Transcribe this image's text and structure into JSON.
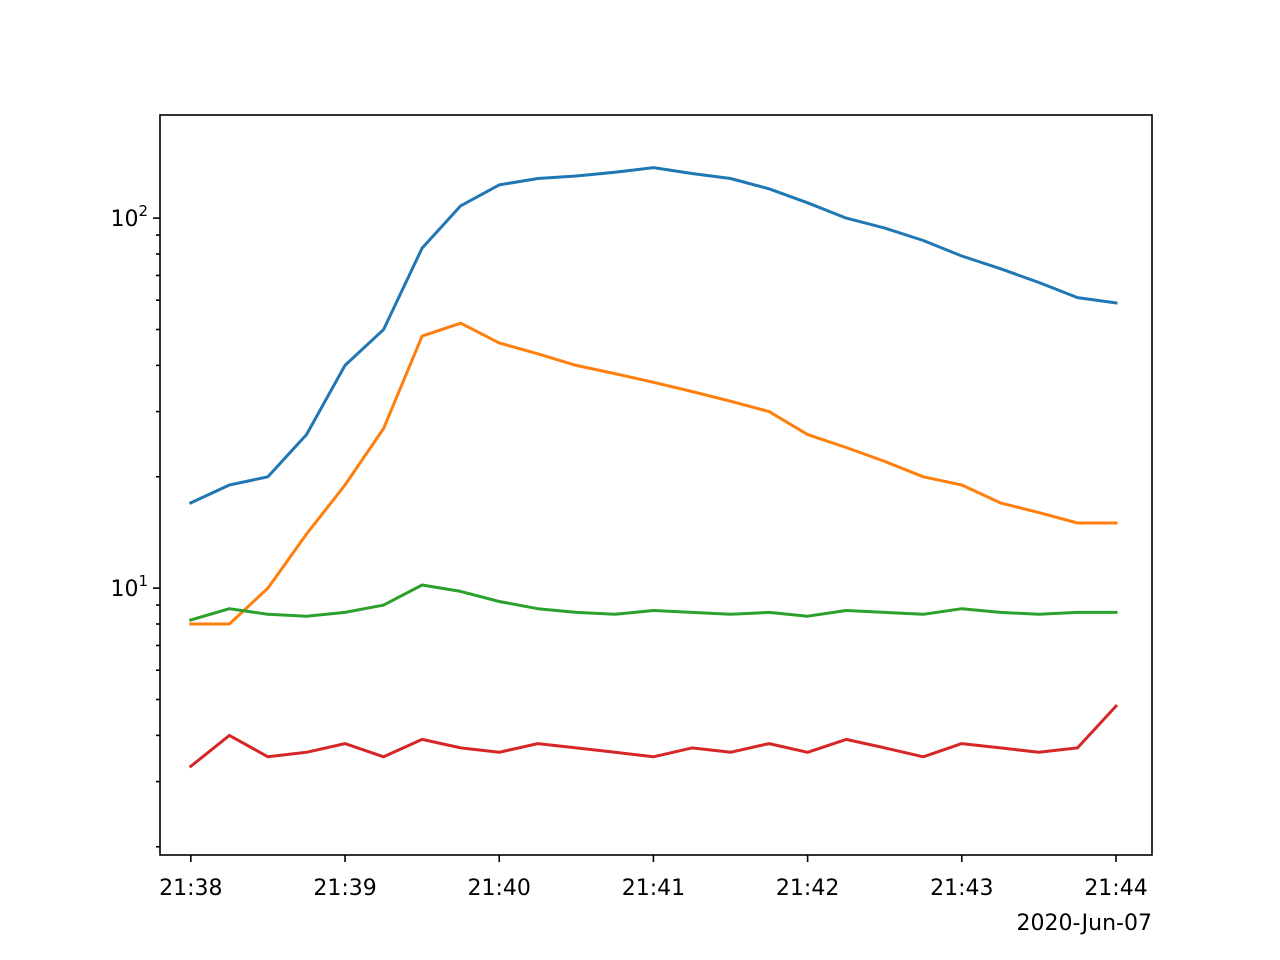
{
  "chart_data": {
    "type": "line",
    "title": "",
    "xlabel": "",
    "ylabel": "",
    "yscale": "log",
    "ylim": [
      1.9,
      190
    ],
    "xlim": [
      "21:37:48",
      "21:44:14"
    ],
    "x_ticks": [
      "21:38",
      "21:39",
      "21:40",
      "21:41",
      "21:42",
      "21:43",
      "21:44"
    ],
    "y_ticks": [
      {
        "value": 10,
        "base": "10",
        "exp": "1"
      },
      {
        "value": 100,
        "base": "10",
        "exp": "2"
      }
    ],
    "date_label": "2020-Jun-07",
    "grid": false,
    "legend": "none",
    "series": [
      {
        "color": "#1f77b4",
        "x": [
          "21:38:00",
          "21:38:15",
          "21:38:30",
          "21:38:45",
          "21:39:00",
          "21:39:15",
          "21:39:30",
          "21:39:45",
          "21:40:00",
          "21:40:15",
          "21:40:30",
          "21:40:45",
          "21:41:00",
          "21:41:15",
          "21:41:30",
          "21:41:45",
          "21:42:00",
          "21:42:15",
          "21:42:30",
          "21:42:45",
          "21:43:00",
          "21:43:15",
          "21:43:30",
          "21:43:45",
          "21:44:00"
        ],
        "values": [
          17,
          19,
          20,
          26,
          40,
          50,
          83,
          108,
          123,
          128,
          130,
          133,
          137,
          132,
          128,
          120,
          110,
          100,
          94,
          87,
          79,
          73,
          67,
          61,
          59
        ]
      },
      {
        "color": "#ff7f0e",
        "x": [
          "21:38:00",
          "21:38:15",
          "21:38:30",
          "21:38:45",
          "21:39:00",
          "21:39:15",
          "21:39:30",
          "21:39:45",
          "21:40:00",
          "21:40:15",
          "21:40:30",
          "21:40:45",
          "21:41:00",
          "21:41:15",
          "21:41:30",
          "21:41:45",
          "21:42:00",
          "21:42:15",
          "21:42:30",
          "21:42:45",
          "21:43:00",
          "21:43:15",
          "21:43:30",
          "21:43:45",
          "21:44:00"
        ],
        "values": [
          8,
          8,
          10,
          14,
          19,
          27,
          48,
          52,
          46,
          43,
          40,
          38,
          36,
          34,
          32,
          30,
          26,
          24,
          22,
          20,
          19,
          17,
          16,
          15,
          15
        ]
      },
      {
        "color": "#2ca02c",
        "x": [
          "21:38:00",
          "21:38:15",
          "21:38:30",
          "21:38:45",
          "21:39:00",
          "21:39:15",
          "21:39:30",
          "21:39:45",
          "21:40:00",
          "21:40:15",
          "21:40:30",
          "21:40:45",
          "21:41:00",
          "21:41:15",
          "21:41:30",
          "21:41:45",
          "21:42:00",
          "21:42:15",
          "21:42:30",
          "21:42:45",
          "21:43:00",
          "21:43:15",
          "21:43:30",
          "21:43:45",
          "21:44:00"
        ],
        "values": [
          8.2,
          8.8,
          8.5,
          8.4,
          8.6,
          9.0,
          10.2,
          9.8,
          9.2,
          8.8,
          8.6,
          8.5,
          8.7,
          8.6,
          8.5,
          8.6,
          8.4,
          8.7,
          8.6,
          8.5,
          8.8,
          8.6,
          8.5,
          8.6,
          8.6
        ]
      },
      {
        "color": "#d62728",
        "x": [
          "21:38:00",
          "21:38:15",
          "21:38:30",
          "21:38:45",
          "21:39:00",
          "21:39:15",
          "21:39:30",
          "21:39:45",
          "21:40:00",
          "21:40:15",
          "21:40:30",
          "21:40:45",
          "21:41:00",
          "21:41:15",
          "21:41:30",
          "21:41:45",
          "21:42:00",
          "21:42:15",
          "21:42:30",
          "21:42:45",
          "21:43:00",
          "21:43:15",
          "21:43:30",
          "21:43:45",
          "21:44:00"
        ],
        "values": [
          3.3,
          4.0,
          3.5,
          3.6,
          3.8,
          3.5,
          3.9,
          3.7,
          3.6,
          3.8,
          3.7,
          3.6,
          3.5,
          3.7,
          3.6,
          3.8,
          3.6,
          3.9,
          3.7,
          3.5,
          3.8,
          3.7,
          3.6,
          3.7,
          4.8
        ]
      }
    ]
  }
}
